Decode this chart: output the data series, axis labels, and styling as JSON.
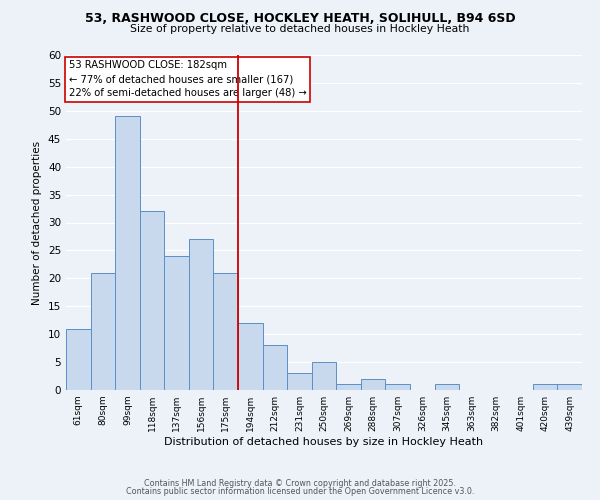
{
  "title1": "53, RASHWOOD CLOSE, HOCKLEY HEATH, SOLIHULL, B94 6SD",
  "title2": "Size of property relative to detached houses in Hockley Heath",
  "xlabel": "Distribution of detached houses by size in Hockley Heath",
  "ylabel": "Number of detached properties",
  "bin_labels": [
    "61sqm",
    "80sqm",
    "99sqm",
    "118sqm",
    "137sqm",
    "156sqm",
    "175sqm",
    "194sqm",
    "212sqm",
    "231sqm",
    "250sqm",
    "269sqm",
    "288sqm",
    "307sqm",
    "326sqm",
    "345sqm",
    "363sqm",
    "382sqm",
    "401sqm",
    "420sqm",
    "439sqm"
  ],
  "bar_values": [
    11,
    21,
    49,
    32,
    24,
    27,
    21,
    12,
    8,
    3,
    5,
    1,
    2,
    1,
    0,
    1,
    0,
    0,
    0,
    1,
    1
  ],
  "bar_color": "#c8d9ee",
  "bar_edge_color": "#5b8fc7",
  "vline_x": 6.5,
  "vline_color": "#cc0000",
  "annotation_line1": "53 RASHWOOD CLOSE: 182sqm",
  "annotation_line2": "← 77% of detached houses are smaller (167)",
  "annotation_line3": "22% of semi-detached houses are larger (48) →",
  "annotation_box_color": "#ffffff",
  "annotation_box_edge": "#cc0000",
  "ylim": [
    0,
    60
  ],
  "yticks": [
    0,
    5,
    10,
    15,
    20,
    25,
    30,
    35,
    40,
    45,
    50,
    55,
    60
  ],
  "footer1": "Contains HM Land Registry data © Crown copyright and database right 2025.",
  "footer2": "Contains public sector information licensed under the Open Government Licence v3.0.",
  "bg_color": "#edf2f9",
  "grid_color": "#ffffff"
}
